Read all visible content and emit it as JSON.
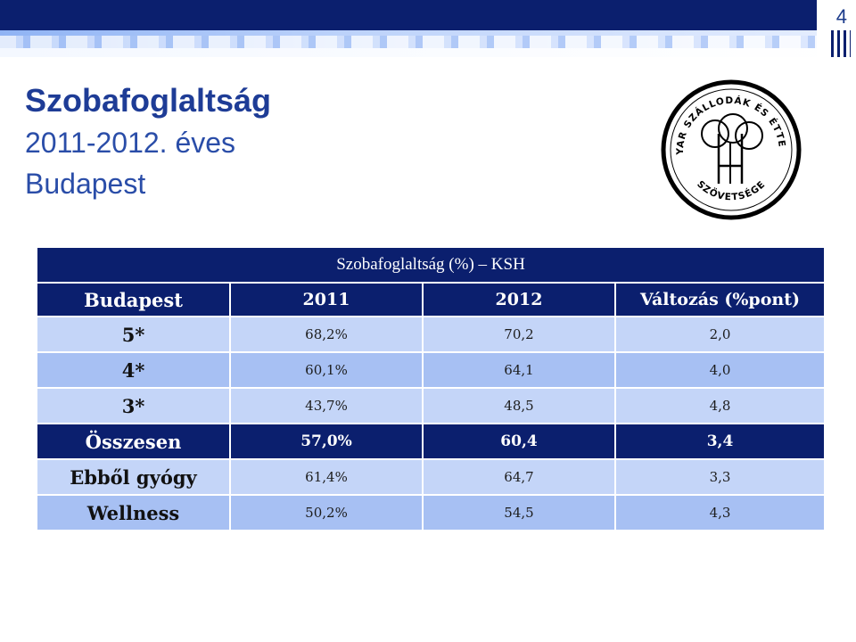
{
  "page_number": "4",
  "title": {
    "main": "Szobafoglaltság",
    "line2": "2011-2012. éves",
    "line3": "Budapest"
  },
  "logo": {
    "text_top": "MAGYAR SZÁLLODÁK ÉS ÉTTERMEK",
    "text_bottom": "SZÖVETSÉGE"
  },
  "table": {
    "caption": "Szobafoglaltság (%) – KSH",
    "headers": [
      "Budapest",
      "2011",
      "2012",
      "Változás (%pont)"
    ],
    "rows": [
      {
        "label": "5*",
        "v2011": "68,2%",
        "v2012": "70,2",
        "change": "2,0"
      },
      {
        "label": "4*",
        "v2011": "60,1%",
        "v2012": "64,1",
        "change": "4,0"
      },
      {
        "label": "3*",
        "v2011": "43,7%",
        "v2012": "48,5",
        "change": "4,8"
      },
      {
        "label": "Összesen",
        "v2011": "57,0%",
        "v2012": "60,4",
        "change": "3,4"
      },
      {
        "label": "Ebből gyógy",
        "v2011": "61,4%",
        "v2012": "64,7",
        "change": "3,3"
      },
      {
        "label": "Wellness",
        "v2011": "50,2%",
        "v2012": "54,5",
        "change": "4,3"
      }
    ]
  },
  "colors": {
    "navy": "#0b1f6e",
    "title_blue": "#1e3c96",
    "row_light": "#c4d5f8",
    "row_mid": "#a7c0f3"
  }
}
